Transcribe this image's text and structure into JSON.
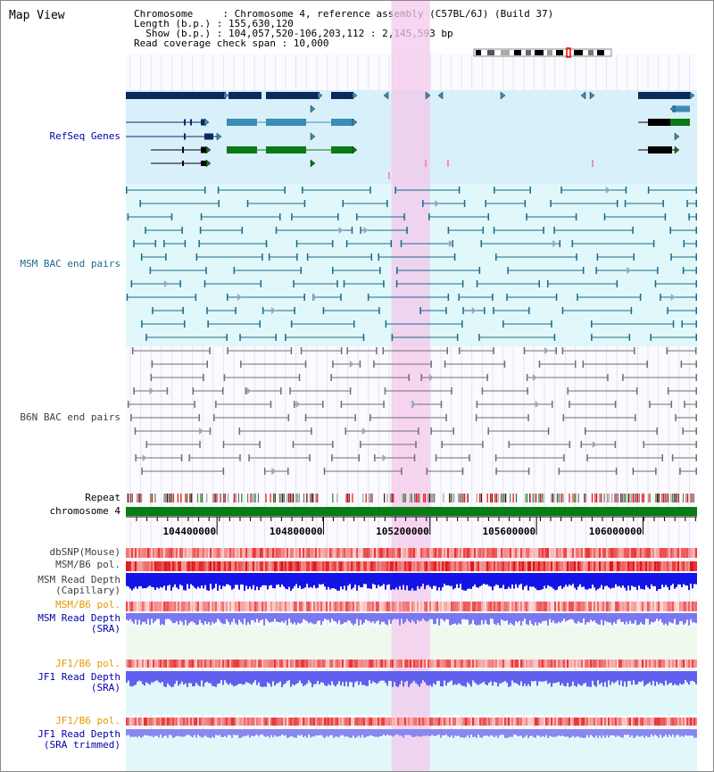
{
  "title": "Map View",
  "info": {
    "line1": "Chromosome     : Chromosome 4, reference assembly (C57BL/6J) (Build 37)",
    "line2": "Length (b.p.) : 155,630,120",
    "line3": "  Show (b.p.) : 104,057,520-106,203,112 : 2,145,593 bp",
    "line4": "Read coverage check span : 10,000"
  },
  "region": {
    "start": 104057520,
    "end": 106203112,
    "highlight_start": 105055000,
    "highlight_end": 105200000
  },
  "tracks": {
    "refseq": "RefSeq Genes",
    "msm_bac": "MSM BAC end pairs",
    "b6n_bac": "B6N BAC end pairs",
    "repeat": "Repeat",
    "chromosome": "chromosome 4",
    "dbsnp": "dbSNP(Mouse)",
    "msm_b6_pol_1": "MSM/B6 pol.",
    "msm_depth_cap_1": "MSM Read Depth",
    "msm_depth_cap_2": "(Capillary)",
    "msm_b6_pol_2": "MSM/B6 pol.",
    "msm_depth_sra_1": "MSM Read Depth",
    "msm_depth_sra_2": "(SRA)",
    "jf1_b6_pol_1": "JF1/B6 pol.",
    "jf1_depth_sra_1": "JF1 Read Depth",
    "jf1_depth_sra_2": "(SRA)",
    "jf1_b6_pol_2": "JF1/B6 pol.",
    "jf1_depth_trim_1": "JF1 Read Depth",
    "jf1_depth_trim_2": "(SRA trimmed)"
  },
  "axis": {
    "ticks": [
      {
        "pos": 104400000,
        "label": "104400000"
      },
      {
        "pos": 104800000,
        "label": "104800000"
      },
      {
        "pos": 105200000,
        "label": "105200000"
      },
      {
        "pos": 105600000,
        "label": "105600000"
      },
      {
        "pos": 106000000,
        "label": "106000000"
      }
    ]
  },
  "colors": {
    "refseq_dark": "#0a2a5e",
    "refseq_mid": "#3c8cb4",
    "refseq_green": "#0a7a14",
    "msm_line": "#1a6a8c",
    "b6n_line": "#707070",
    "highlight": "#f8d4f0",
    "chrom_green": "#087c14",
    "depth_blue": "#1414e6",
    "depth_light": "#7878f0",
    "label_blue": "#0000aa",
    "label_msm": "#1a6a8c",
    "label_gray": "#404040",
    "label_orange": "#e69a00"
  }
}
